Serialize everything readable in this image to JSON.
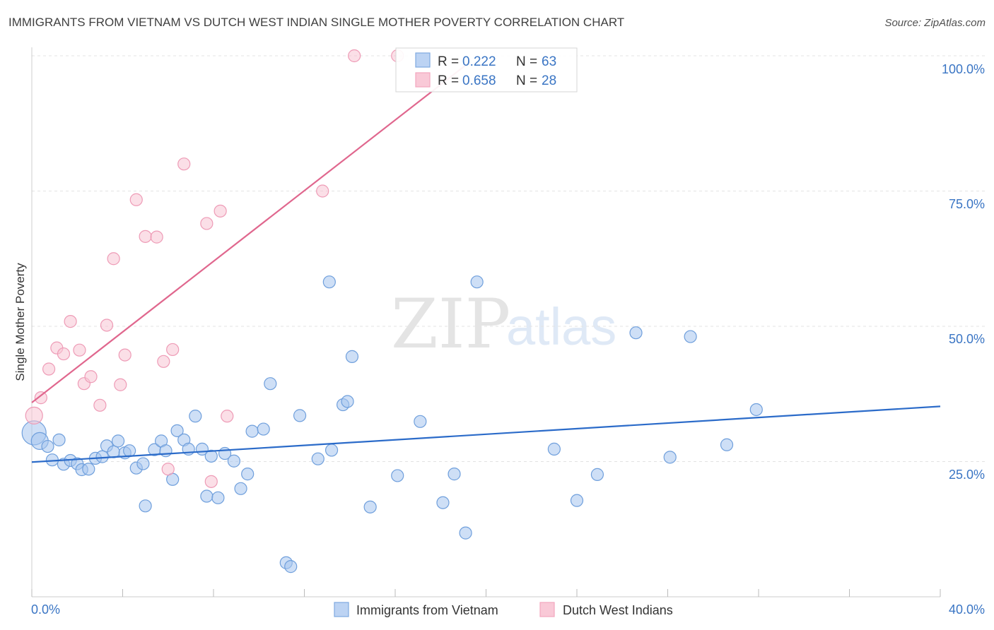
{
  "header": {
    "title": "IMMIGRANTS FROM VIETNAM VS DUTCH WEST INDIAN SINGLE MOTHER POVERTY CORRELATION CHART",
    "source": "Source: ZipAtlas.com"
  },
  "watermark": {
    "zip": "ZIP",
    "atlas": "atlas"
  },
  "legend": {
    "rows": [
      {
        "r_label": "R = ",
        "r_value": "0.222",
        "n_label": "N = ",
        "n_value": "63"
      },
      {
        "r_label": "R = ",
        "r_value": "0.658",
        "n_label": "N = ",
        "n_value": "28"
      }
    ]
  },
  "chart_data": {
    "type": "scatter",
    "title": "IMMIGRANTS FROM VIETNAM VS DUTCH WEST INDIAN SINGLE MOTHER POVERTY CORRELATION CHART",
    "xlabel": "",
    "ylabel": "Single Mother Poverty",
    "xlim": [
      0,
      40
    ],
    "ylim": [
      0,
      100
    ],
    "x_tick_labels": [
      "0.0%",
      "40.0%"
    ],
    "y_tick_labels": [
      "100.0%",
      "75.0%",
      "50.0%",
      "25.0%"
    ],
    "y_ticks": [
      100,
      75,
      50,
      25
    ],
    "grid": true,
    "legend_position": "top-center and bottom",
    "colors": {
      "vietnam": "#7fa9e0",
      "vietnam_line": "#2b6bc9",
      "dutch": "#f2a6bd",
      "dutch_line": "#e0678e"
    },
    "series": [
      {
        "name": "Immigrants from Vietnam",
        "r": 0.222,
        "n": 63,
        "trend": {
          "x": [
            0,
            40
          ],
          "y": [
            24.9,
            35.2
          ]
        },
        "points": [
          [
            0.1,
            30.3
          ],
          [
            0.35,
            28.8
          ],
          [
            0.7,
            27.8
          ],
          [
            1.2,
            29.0
          ],
          [
            0.9,
            25.3
          ],
          [
            1.4,
            24.5
          ],
          [
            1.7,
            25.2
          ],
          [
            2.0,
            24.6
          ],
          [
            2.2,
            23.5
          ],
          [
            2.5,
            23.6
          ],
          [
            2.8,
            25.6
          ],
          [
            3.1,
            25.9
          ],
          [
            3.3,
            27.9
          ],
          [
            3.6,
            26.8
          ],
          [
            3.8,
            28.8
          ],
          [
            4.1,
            26.6
          ],
          [
            4.3,
            27.0
          ],
          [
            4.6,
            23.8
          ],
          [
            4.9,
            24.6
          ],
          [
            5.0,
            16.8
          ],
          [
            5.4,
            27.2
          ],
          [
            5.7,
            28.8
          ],
          [
            5.9,
            27.0
          ],
          [
            6.2,
            21.7
          ],
          [
            6.4,
            30.7
          ],
          [
            6.7,
            29.0
          ],
          [
            6.9,
            27.3
          ],
          [
            7.2,
            33.4
          ],
          [
            7.5,
            27.3
          ],
          [
            7.7,
            18.6
          ],
          [
            7.9,
            26.0
          ],
          [
            8.2,
            18.3
          ],
          [
            8.5,
            26.5
          ],
          [
            8.9,
            25.1
          ],
          [
            9.2,
            20.0
          ],
          [
            9.5,
            22.7
          ],
          [
            9.7,
            30.6
          ],
          [
            10.2,
            31.0
          ],
          [
            10.5,
            39.4
          ],
          [
            11.2,
            6.3
          ],
          [
            11.4,
            5.6
          ],
          [
            11.8,
            33.5
          ],
          [
            12.6,
            25.5
          ],
          [
            13.1,
            58.2
          ],
          [
            13.2,
            27.1
          ],
          [
            13.7,
            35.5
          ],
          [
            13.9,
            36.1
          ],
          [
            14.1,
            44.4
          ],
          [
            14.9,
            16.6
          ],
          [
            16.1,
            22.4
          ],
          [
            17.1,
            32.4
          ],
          [
            18.1,
            17.4
          ],
          [
            18.6,
            22.7
          ],
          [
            19.1,
            11.8
          ],
          [
            19.6,
            58.2
          ],
          [
            23.0,
            27.3
          ],
          [
            24.0,
            17.8
          ],
          [
            24.9,
            22.6
          ],
          [
            26.6,
            48.8
          ],
          [
            28.1,
            25.8
          ],
          [
            29.0,
            48.1
          ],
          [
            30.6,
            28.1
          ],
          [
            31.9,
            34.6
          ]
        ]
      },
      {
        "name": "Dutch West Indians",
        "r": 0.658,
        "n": 28,
        "trend": {
          "x": [
            0,
            19.3
          ],
          "y": [
            35.9,
            98.9
          ]
        },
        "points": [
          [
            0.1,
            33.5
          ],
          [
            0.4,
            36.8
          ],
          [
            0.75,
            42.1
          ],
          [
            1.1,
            46.0
          ],
          [
            1.4,
            44.9
          ],
          [
            1.7,
            50.9
          ],
          [
            2.1,
            45.6
          ],
          [
            2.3,
            39.4
          ],
          [
            2.6,
            40.7
          ],
          [
            3.0,
            35.4
          ],
          [
            3.3,
            50.2
          ],
          [
            3.6,
            62.5
          ],
          [
            3.9,
            39.2
          ],
          [
            4.1,
            44.7
          ],
          [
            4.6,
            73.4
          ],
          [
            5.0,
            66.6
          ],
          [
            5.5,
            66.5
          ],
          [
            5.8,
            43.5
          ],
          [
            6.0,
            23.6
          ],
          [
            6.2,
            45.7
          ],
          [
            6.7,
            80.0
          ],
          [
            7.7,
            69.0
          ],
          [
            7.9,
            21.3
          ],
          [
            8.3,
            71.3
          ],
          [
            8.6,
            33.4
          ],
          [
            12.8,
            75.0
          ],
          [
            14.2,
            100.0
          ],
          [
            16.1,
            100.0
          ]
        ]
      }
    ]
  },
  "bottom_legend": {
    "items": [
      {
        "label": "Immigrants from Vietnam"
      },
      {
        "label": "Dutch West Indians"
      }
    ]
  }
}
